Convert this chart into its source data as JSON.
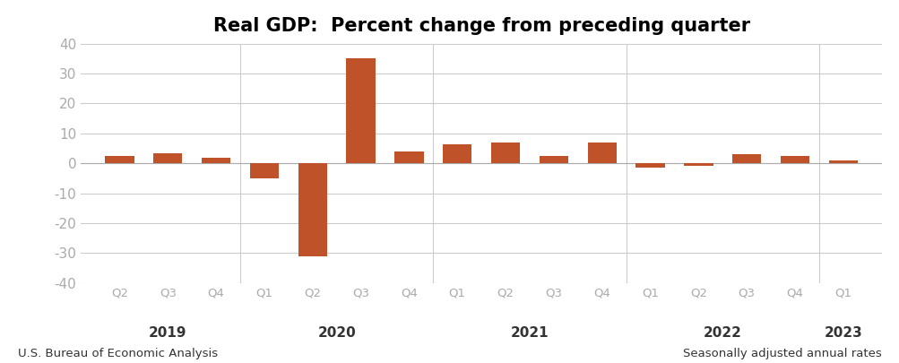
{
  "title": "Real GDP:  Percent change from preceding quarter",
  "bar_color": "#c0522a",
  "background_color": "#ffffff",
  "categories": [
    "Q2",
    "Q3",
    "Q4",
    "Q1",
    "Q2",
    "Q3",
    "Q4",
    "Q1",
    "Q2",
    "Q3",
    "Q4",
    "Q1",
    "Q2",
    "Q3",
    "Q4",
    "Q1"
  ],
  "values": [
    2.5,
    3.5,
    2.0,
    -5.0,
    -31.2,
    35.0,
    4.0,
    6.5,
    7.0,
    2.5,
    7.0,
    -1.5,
    -0.9,
    3.2,
    2.6,
    1.1
  ],
  "year_centers": {
    "2019": 1.0,
    "2020": 4.5,
    "2021": 8.5,
    "2022": 12.5,
    "2023": 15.0
  },
  "ylim": [
    -40,
    40
  ],
  "yticks": [
    -40,
    -30,
    -20,
    -10,
    0,
    10,
    20,
    30,
    40
  ],
  "footnote_left": "U.S. Bureau of Economic Analysis",
  "footnote_right": "Seasonally adjusted annual rates",
  "grid_color": "#cccccc",
  "tick_label_color": "#aaaaaa",
  "year_label_color": "#333333",
  "title_fontsize": 15,
  "tick_fontsize": 9.5,
  "year_fontsize": 11,
  "footnote_fontsize": 9.5,
  "ytick_fontsize": 11
}
